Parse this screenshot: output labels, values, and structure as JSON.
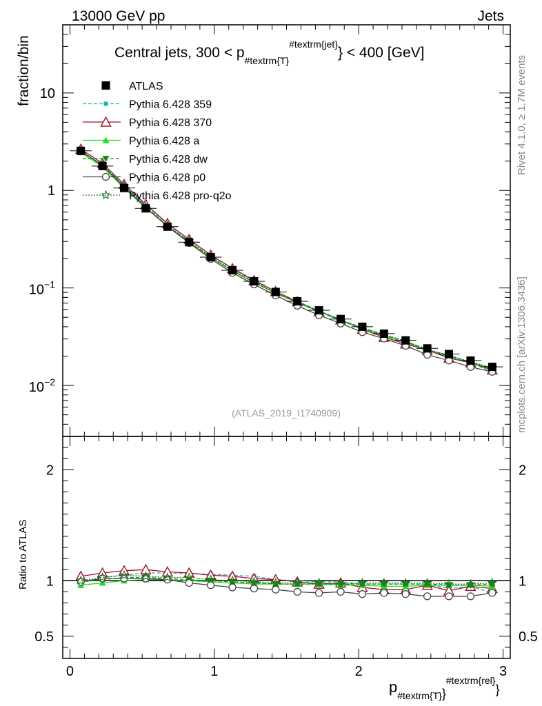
{
  "header": {
    "left_title": "13000 GeV pp",
    "right_title": "Jets"
  },
  "side_labels": {
    "rivet": "Rivet 4.1.0, ≥ 1.7M events",
    "mcplots": "mcplots.cern.ch [arXiv:1306.3436]"
  },
  "analysis_id": "(ATLAS_2019_I1740909)",
  "colors": {
    "atlas": "#000000",
    "p359": "#20b2aa",
    "p370": "#a0102a",
    "pa": "#22dd22",
    "pdw": "#109010",
    "pp0": "#444444",
    "pq2o": "#207020"
  },
  "chart_data": {
    "type": "line",
    "title": {
      "prefix": "Central jets, 300 < p",
      "sub": "#textrm{T}",
      "sup": "#textrm{jet}",
      "suffix": "} < 400 [GeV]"
    },
    "top_panel": {
      "ylabel": "fraction/bin",
      "yscale": "log",
      "ylim": [
        0.003,
        50
      ],
      "ytick_labels": [
        {
          "value": 10,
          "base": "10",
          "exp": ""
        },
        {
          "value": 1,
          "base": "1",
          "exp": ""
        },
        {
          "value": 0.1,
          "base": "10",
          "exp": "−1"
        },
        {
          "value": 0.01,
          "base": "10",
          "exp": "−2"
        }
      ]
    },
    "bottom_panel": {
      "ylabel": "Ratio to ATLAS",
      "ylim": [
        0.3,
        2.3
      ],
      "ytick_labels": [
        "0.5",
        "1",
        "2"
      ],
      "yticks": [
        0.5,
        1,
        2
      ]
    },
    "x": {
      "label_main": "p",
      "label_sub": "#textrm{T}",
      "label_sup": "#textrm{rel}",
      "label_close": "}",
      "xlim": [
        -0.05,
        3.05
      ],
      "tick_values": [
        0,
        1,
        2,
        3
      ],
      "tick_labels": [
        "0",
        "1",
        "2",
        "3"
      ]
    },
    "bin_centers": [
      0.075,
      0.225,
      0.375,
      0.525,
      0.675,
      0.825,
      0.975,
      1.125,
      1.275,
      1.425,
      1.575,
      1.725,
      1.875,
      2.025,
      2.175,
      2.325,
      2.475,
      2.625,
      2.775,
      2.925
    ],
    "data": {
      "name": "ATLAS",
      "values": [
        2.55,
        1.78,
        1.06,
        0.655,
        0.425,
        0.295,
        0.207,
        0.152,
        0.117,
        0.091,
        0.073,
        0.059,
        0.048,
        0.04,
        0.034,
        0.029,
        0.024,
        0.021,
        0.018,
        0.0155
      ]
    },
    "series": [
      {
        "name": "Pythia 6.428 359",
        "color_key": "p359",
        "dash": "5,3",
        "marker": "square-small",
        "ratio": [
          0.98,
          1.03,
          1.05,
          1.07,
          1.07,
          1.06,
          1.06,
          1.05,
          1.04,
          1.01,
          1.0,
          0.99,
          0.99,
          0.97,
          0.97,
          0.97,
          0.97,
          0.93,
          0.95,
          0.89
        ]
      },
      {
        "name": "Pythia 6.428 370",
        "color_key": "p370",
        "dash": "",
        "marker": "triangle-open",
        "ratio": [
          1.04,
          1.07,
          1.09,
          1.1,
          1.08,
          1.07,
          1.05,
          1.04,
          1.02,
          1.01,
          0.99,
          0.97,
          0.98,
          0.94,
          0.92,
          0.92,
          0.96,
          0.91,
          0.95,
          0.93
        ]
      },
      {
        "name": "Pythia 6.428 a",
        "color_key": "pa",
        "dash": "",
        "marker": "triangle-filled",
        "ratio": [
          0.96,
          0.98,
          1.0,
          1.01,
          1.01,
          1.0,
          0.99,
          0.98,
          0.97,
          0.97,
          0.97,
          0.97,
          0.96,
          0.96,
          0.95,
          0.95,
          0.96,
          0.96,
          0.96,
          0.95
        ]
      },
      {
        "name": "Pythia 6.428 dw",
        "color_key": "pdw",
        "dash": "5,3",
        "marker": "triangle-down-filled",
        "ratio": [
          0.99,
          1.01,
          1.03,
          1.03,
          1.02,
          1.01,
          1.0,
          0.99,
          0.98,
          0.97,
          0.97,
          0.97,
          0.97,
          0.97,
          0.97,
          0.97,
          0.97,
          0.96,
          0.96,
          0.97
        ]
      },
      {
        "name": "Pythia 6.428 p0",
        "color_key": "pp0",
        "dash": "",
        "marker": "circle-open",
        "ratio": [
          0.99,
          1.02,
          1.02,
          1.02,
          1.01,
          0.98,
          0.96,
          0.94,
          0.93,
          0.92,
          0.9,
          0.89,
          0.9,
          0.88,
          0.89,
          0.88,
          0.86,
          0.86,
          0.86,
          0.89
        ]
      },
      {
        "name": "Pythia 6.428 pro-q2o",
        "color_key": "pq2o",
        "dash": "2,2",
        "marker": "star-open",
        "ratio": [
          1.0,
          1.03,
          1.05,
          1.04,
          1.03,
          1.03,
          1.01,
          1.0,
          0.99,
          0.98,
          0.98,
          0.98,
          0.97,
          0.98,
          0.98,
          0.98,
          0.98,
          0.97,
          0.97,
          0.98
        ]
      }
    ]
  }
}
